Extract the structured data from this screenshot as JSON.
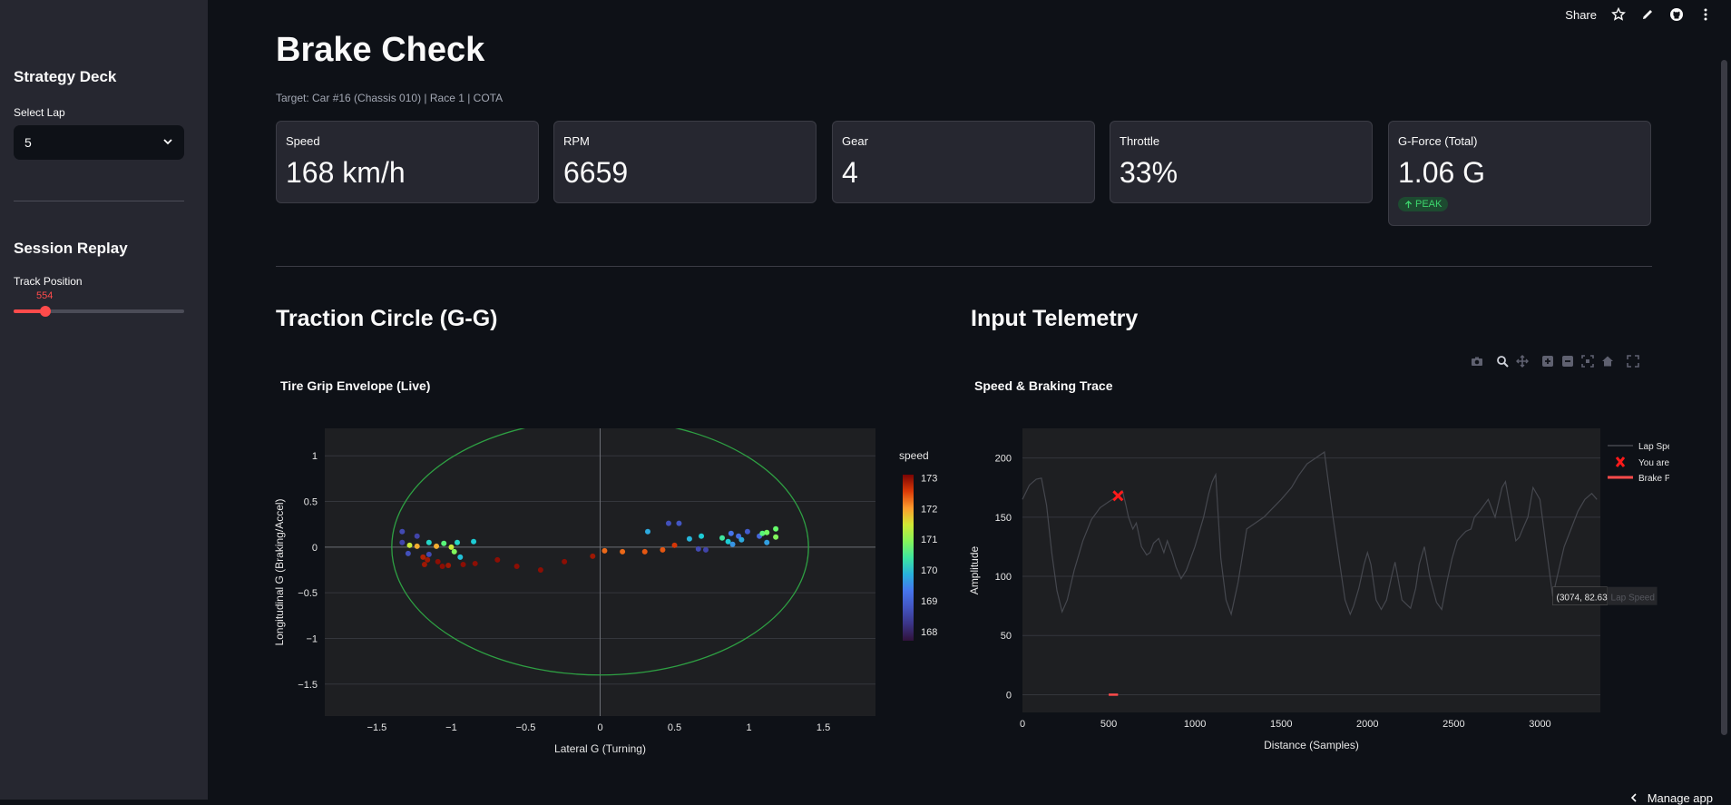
{
  "toolbar": {
    "share": "Share"
  },
  "sidebar": {
    "strategy_heading": "Strategy Deck",
    "select_lap_label": "Select Lap",
    "selected_lap": "5",
    "session_heading": "Session Replay",
    "track_position_label": "Track Position",
    "track_position_value": "554"
  },
  "header": {
    "title": "Brake Check",
    "subtitle": "Target: Car #16 (Chassis 010) | Race 1 | COTA"
  },
  "metrics": [
    {
      "label": "Speed",
      "value": "168 km/h"
    },
    {
      "label": "RPM",
      "value": "6659"
    },
    {
      "label": "Gear",
      "value": "4"
    },
    {
      "label": "Throttle",
      "value": "33%"
    },
    {
      "label": "G-Force (Total)",
      "value": "1.06 G",
      "delta": "PEAK"
    }
  ],
  "sections": {
    "left_heading": "Traction Circle (G-G)",
    "right_heading": "Input Telemetry"
  },
  "footer": {
    "manage_app": "Manage app"
  },
  "colors": {
    "accent": "#ff4b4b",
    "grip_circle": "#2ea043",
    "background": "#0e1117",
    "sidebar": "#262730"
  },
  "chart_data": [
    {
      "type": "scatter",
      "title": "Tire Grip Envelope (Live)",
      "xlabel": "Lateral G (Turning)",
      "ylabel": "Longitudinal G (Braking/Accel)",
      "xlim": [
        -1.85,
        1.85
      ],
      "ylim": [
        -1.85,
        1.3
      ],
      "xticks": [
        -1.5,
        -1,
        -0.5,
        0,
        0.5,
        1,
        1.5
      ],
      "yticks": [
        1,
        0.5,
        0,
        -0.5,
        -1,
        -1.5
      ],
      "x_tick_labels": [
        "−1.5",
        "−1",
        "−0.5",
        "0",
        "0.5",
        "1",
        "1.5"
      ],
      "y_tick_labels": [
        "1",
        "0.5",
        "0",
        "−0.5",
        "−1",
        "−1.5"
      ],
      "grip_circle_radius": 1.4,
      "colorbar": {
        "title": "speed",
        "min": 167.7,
        "max": 173.1,
        "ticks": [
          173,
          172,
          171,
          170,
          169,
          168
        ]
      },
      "points": [
        {
          "x": -1.33,
          "y": 0.17,
          "speed": 168.6
        },
        {
          "x": -1.33,
          "y": 0.05,
          "speed": 168.5
        },
        {
          "x": -1.29,
          "y": -0.07,
          "speed": 168.7
        },
        {
          "x": -1.28,
          "y": 0.02,
          "speed": 171.4
        },
        {
          "x": -1.23,
          "y": 0.12,
          "speed": 168.5
        },
        {
          "x": -1.23,
          "y": 0.01,
          "speed": 171.9
        },
        {
          "x": -1.19,
          "y": -0.11,
          "speed": 172.8
        },
        {
          "x": -1.18,
          "y": -0.19,
          "speed": 172.9
        },
        {
          "x": -1.16,
          "y": -0.14,
          "speed": 172.9
        },
        {
          "x": -1.15,
          "y": -0.08,
          "speed": 168.6
        },
        {
          "x": -1.15,
          "y": 0.05,
          "speed": 170.2
        },
        {
          "x": -1.1,
          "y": 0.01,
          "speed": 171.9
        },
        {
          "x": -1.09,
          "y": -0.16,
          "speed": 173.0
        },
        {
          "x": -1.06,
          "y": -0.21,
          "speed": 173.0
        },
        {
          "x": -1.05,
          "y": 0.04,
          "speed": 170.6
        },
        {
          "x": -1.02,
          "y": -0.2,
          "speed": 172.9
        },
        {
          "x": -1.0,
          "y": 0.0,
          "speed": 171.4
        },
        {
          "x": -0.98,
          "y": -0.05,
          "speed": 170.9
        },
        {
          "x": -0.96,
          "y": 0.05,
          "speed": 170.2
        },
        {
          "x": -0.94,
          "y": -0.11,
          "speed": 170.0
        },
        {
          "x": -0.92,
          "y": -0.19,
          "speed": 173.0
        },
        {
          "x": -0.85,
          "y": 0.06,
          "speed": 170.1
        },
        {
          "x": -0.84,
          "y": -0.18,
          "speed": 173.0
        },
        {
          "x": -0.69,
          "y": -0.14,
          "speed": 173.0
        },
        {
          "x": -0.56,
          "y": -0.21,
          "speed": 173.0
        },
        {
          "x": -0.4,
          "y": -0.25,
          "speed": 173.0
        },
        {
          "x": -0.24,
          "y": -0.16,
          "speed": 173.0
        },
        {
          "x": -0.05,
          "y": -0.1,
          "speed": 172.9
        },
        {
          "x": 0.03,
          "y": -0.04,
          "speed": 172.3
        },
        {
          "x": 0.15,
          "y": -0.05,
          "speed": 172.3
        },
        {
          "x": 0.3,
          "y": -0.05,
          "speed": 172.4
        },
        {
          "x": 0.32,
          "y": 0.17,
          "speed": 169.8
        },
        {
          "x": 0.42,
          "y": -0.03,
          "speed": 172.4
        },
        {
          "x": 0.46,
          "y": 0.26,
          "speed": 168.7
        },
        {
          "x": 0.5,
          "y": 0.02,
          "speed": 172.6
        },
        {
          "x": 0.53,
          "y": 0.26,
          "speed": 168.8
        },
        {
          "x": 0.6,
          "y": 0.09,
          "speed": 169.9
        },
        {
          "x": 0.66,
          "y": -0.02,
          "speed": 168.6
        },
        {
          "x": 0.68,
          "y": 0.12,
          "speed": 170.1
        },
        {
          "x": 0.71,
          "y": -0.03,
          "speed": 168.5
        },
        {
          "x": 0.82,
          "y": 0.1,
          "speed": 170.4
        },
        {
          "x": 0.86,
          "y": 0.06,
          "speed": 170.1
        },
        {
          "x": 0.88,
          "y": 0.15,
          "speed": 169.3
        },
        {
          "x": 0.89,
          "y": 0.03,
          "speed": 169.6
        },
        {
          "x": 0.93,
          "y": 0.12,
          "speed": 169.2
        },
        {
          "x": 0.95,
          "y": 0.08,
          "speed": 169.8
        },
        {
          "x": 0.99,
          "y": 0.17,
          "speed": 168.9
        },
        {
          "x": 1.07,
          "y": 0.12,
          "speed": 169.1
        },
        {
          "x": 1.09,
          "y": 0.15,
          "speed": 170.6
        },
        {
          "x": 1.12,
          "y": 0.16,
          "speed": 170.8
        },
        {
          "x": 1.12,
          "y": 0.05,
          "speed": 169.7
        },
        {
          "x": 1.18,
          "y": 0.2,
          "speed": 170.7
        },
        {
          "x": 1.18,
          "y": 0.11,
          "speed": 170.9
        }
      ]
    },
    {
      "type": "line",
      "title": "Speed & Braking Trace",
      "xlabel": "Distance (Samples)",
      "ylabel": "Amplitude",
      "xlim": [
        0,
        3350
      ],
      "ylim": [
        -15,
        225
      ],
      "xticks": [
        0,
        500,
        1000,
        1500,
        2000,
        2500,
        3000
      ],
      "yticks": [
        0,
        50,
        100,
        150,
        200
      ],
      "legend": [
        "Lap Speed",
        "You are Here",
        "Brake Pressure"
      ],
      "series": [
        {
          "name": "Lap Speed",
          "x": [
            0,
            40,
            80,
            110,
            140,
            170,
            200,
            230,
            260,
            300,
            350,
            400,
            450,
            500,
            554,
            580,
            600,
            615,
            640,
            660,
            690,
            720,
            740,
            760,
            790,
            820,
            840,
            870,
            890,
            920,
            950,
            1000,
            1050,
            1080,
            1100,
            1120,
            1150,
            1180,
            1210,
            1250,
            1300,
            1400,
            1500,
            1560,
            1600,
            1650,
            1700,
            1750,
            1800,
            1840,
            1870,
            1900,
            1920,
            1950,
            1980,
            2000,
            2020,
            2050,
            2080,
            2110,
            2140,
            2160,
            2200,
            2250,
            2280,
            2300,
            2330,
            2360,
            2400,
            2430,
            2460,
            2490,
            2520,
            2550,
            2570,
            2600,
            2620,
            2650,
            2700,
            2740,
            2780,
            2800,
            2830,
            2860,
            2880,
            2900,
            2930,
            2960,
            3000,
            3040,
            3074,
            3100,
            3140,
            3180,
            3220,
            3260,
            3300,
            3330
          ],
          "y": [
            165,
            177,
            182,
            183,
            160,
            120,
            88,
            70,
            80,
            105,
            130,
            148,
            158,
            163,
            168,
            172,
            160,
            150,
            140,
            145,
            125,
            118,
            120,
            128,
            132,
            120,
            130,
            118,
            108,
            98,
            105,
            125,
            150,
            170,
            180,
            186,
            115,
            80,
            68,
            95,
            140,
            150,
            165,
            175,
            185,
            195,
            200,
            205,
            150,
            110,
            80,
            68,
            75,
            90,
            110,
            120,
            110,
            80,
            72,
            80,
            100,
            112,
            80,
            73,
            90,
            110,
            125,
            100,
            78,
            72,
            95,
            115,
            130,
            135,
            138,
            140,
            150,
            155,
            165,
            150,
            175,
            180,
            155,
            130,
            133,
            140,
            150,
            175,
            165,
            120,
            83,
            100,
            125,
            140,
            155,
            165,
            170,
            165
          ]
        },
        {
          "name": "You are Here",
          "x": [
            554
          ],
          "y": [
            168
          ]
        },
        {
          "name": "Brake Pressure",
          "x": [
            500,
            554
          ],
          "y": [
            0,
            0
          ]
        }
      ],
      "hover_label": "(3074, 82.63)",
      "hover_series": "Lap Speed"
    }
  ]
}
